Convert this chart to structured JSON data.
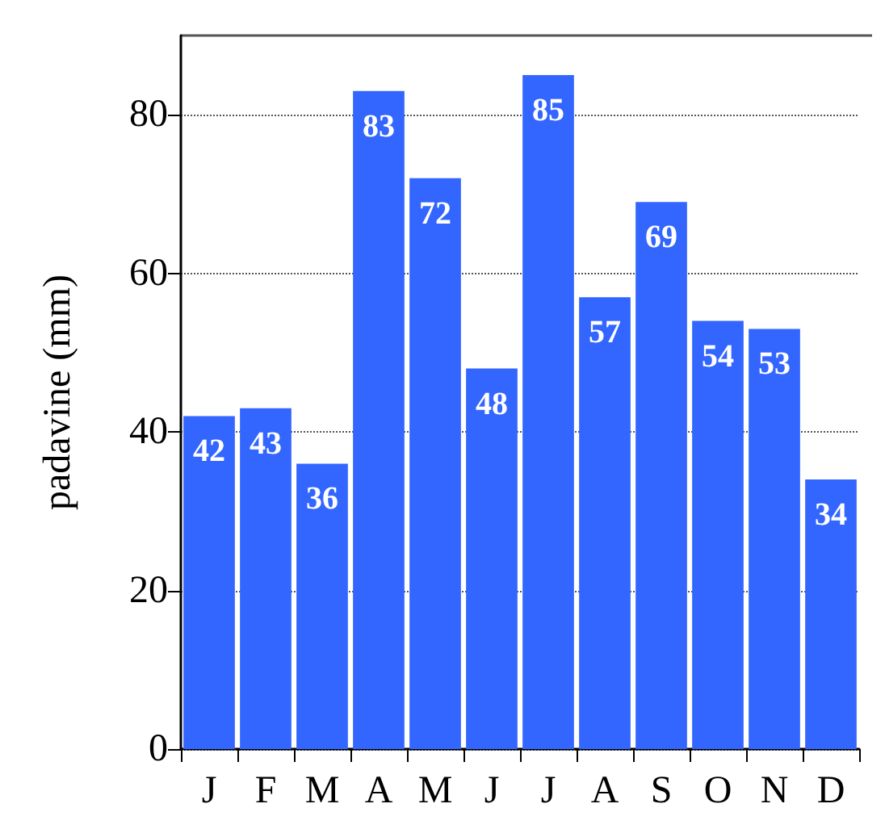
{
  "chart_data": {
    "type": "bar",
    "ylabel": "padavine (mm)",
    "categories": [
      "J",
      "F",
      "M",
      "A",
      "M",
      "J",
      "J",
      "A",
      "S",
      "O",
      "N",
      "D"
    ],
    "values": [
      42,
      43,
      36,
      83,
      72,
      48,
      85,
      57,
      69,
      54,
      53,
      34
    ],
    "color": "#3366ff",
    "ylim": [
      0,
      90
    ],
    "yticks": [
      0,
      20,
      40,
      60,
      80
    ],
    "grid": "y",
    "data_labels": true
  }
}
